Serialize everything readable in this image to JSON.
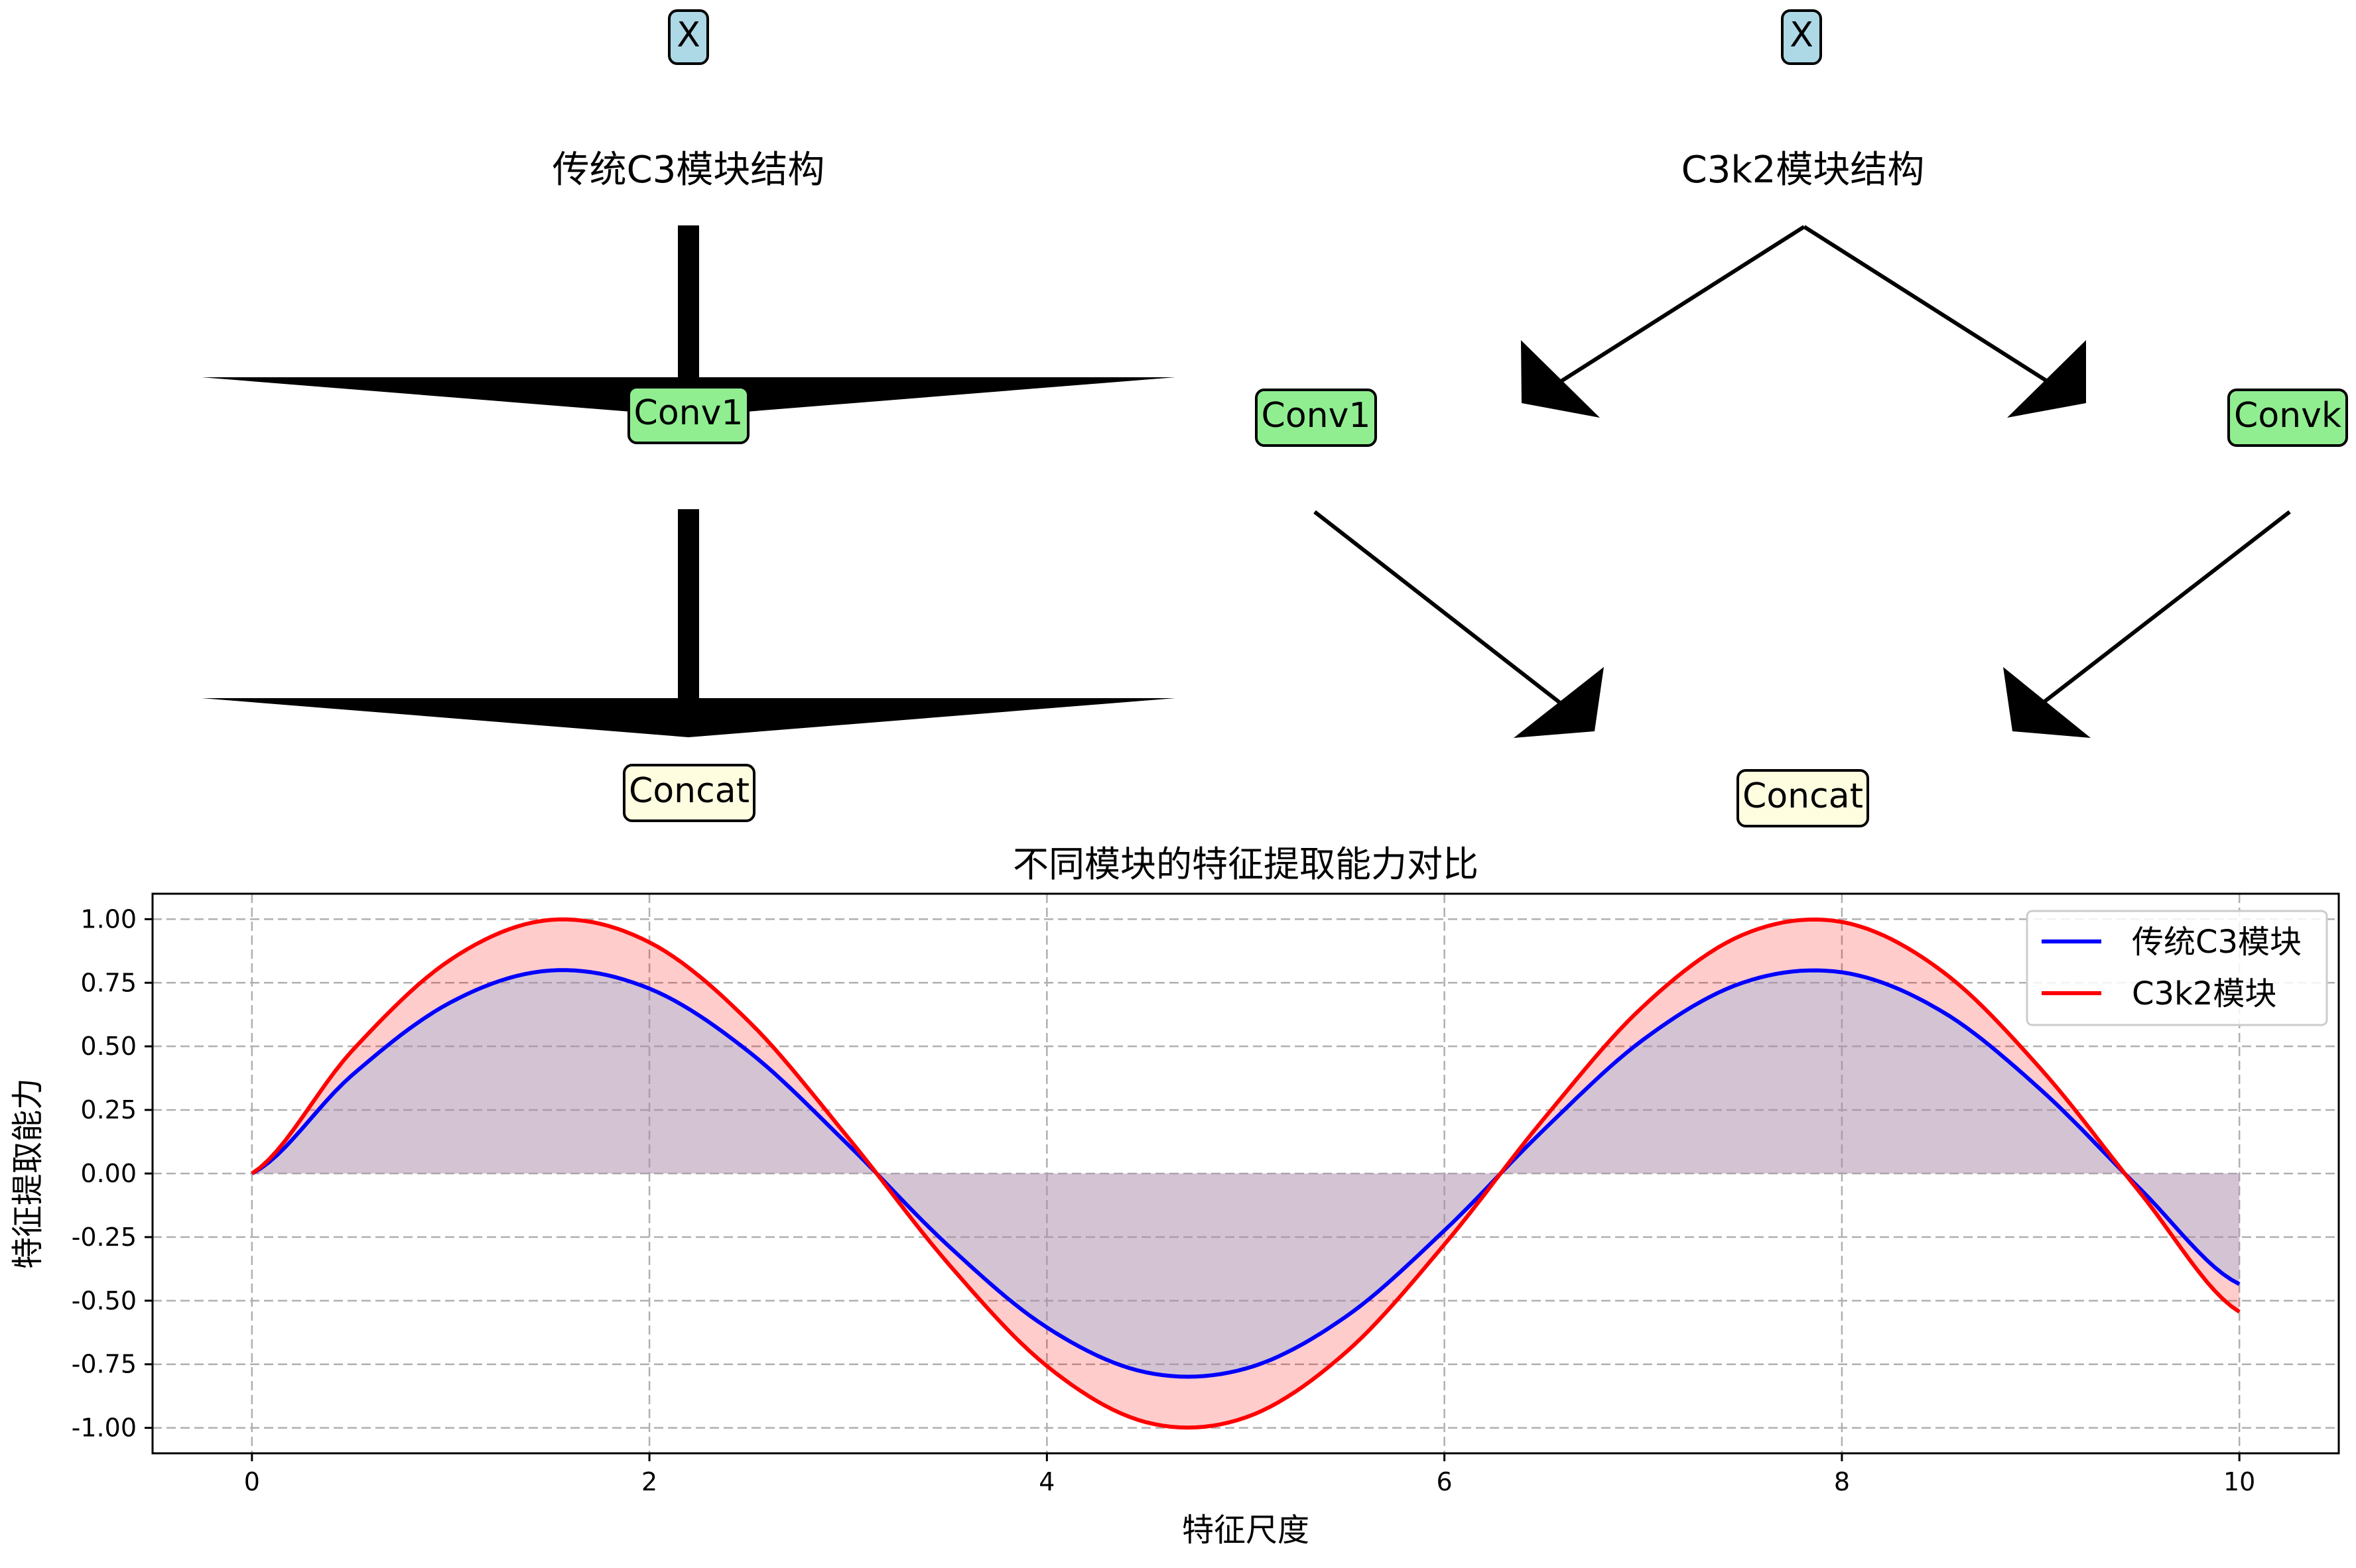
{
  "diagram": {
    "left": {
      "title": "传统C3模块结构",
      "input": "X",
      "conv": "Conv1",
      "concat": "Concat"
    },
    "right": {
      "title": "C3k2模块结构",
      "input": "X",
      "conv_left": "Conv1",
      "conv_right": "Convk",
      "concat": "Concat"
    },
    "colors": {
      "input_fill": "#add8e6",
      "conv_fill": "#90ee90",
      "concat_fill": "#fffde0"
    }
  },
  "chart_data": {
    "type": "line",
    "title": "不同模块的特征提取能力对比",
    "xlabel": "特征尺度",
    "ylabel": "特征提取能力",
    "xlim": [
      -0.5,
      10.5
    ],
    "ylim": [
      -1.1,
      1.1
    ],
    "xticks": [
      0,
      2,
      4,
      6,
      8,
      10
    ],
    "yticks": [
      1.0,
      0.75,
      0.5,
      0.25,
      0.0,
      -0.25,
      -0.5,
      -0.75,
      -1.0
    ],
    "xtick_labels": [
      "0",
      "2",
      "4",
      "6",
      "8",
      "10"
    ],
    "ytick_labels": [
      "1.00",
      "0.75",
      "0.50",
      "0.25",
      "0.00",
      "-0.25",
      "-0.50",
      "-0.75",
      "-1.00"
    ],
    "grid": true,
    "legend_position": "top-right",
    "x": [
      0,
      0.5,
      1,
      1.5,
      2,
      2.5,
      3,
      3.5,
      4,
      4.5,
      5,
      5.5,
      6,
      6.5,
      7,
      7.5,
      8,
      8.5,
      9,
      9.5,
      10
    ],
    "series": [
      {
        "name": "传统C3模块",
        "color": "#0000ff",
        "values": [
          0,
          0.384,
          0.673,
          0.798,
          0.727,
          0.479,
          0.113,
          -0.281,
          -0.605,
          -0.782,
          -0.767,
          -0.565,
          -0.224,
          0.172,
          0.526,
          0.75,
          0.791,
          0.639,
          0.33,
          -0.06,
          -0.435
        ]
      },
      {
        "name": "C3k2模块",
        "color": "#ff0000",
        "values": [
          0,
          0.479,
          0.841,
          0.997,
          0.909,
          0.598,
          0.141,
          -0.351,
          -0.757,
          -0.978,
          -0.959,
          -0.706,
          -0.279,
          0.215,
          0.657,
          0.938,
          0.989,
          0.798,
          0.412,
          -0.075,
          -0.544
        ]
      }
    ],
    "fills": [
      {
        "between": "C3k2模块 and 传统C3模块",
        "color": "#ff0000",
        "alpha": 0.2
      },
      {
        "between": "传统C3模块 and 0",
        "color": "#8fa8c8",
        "alpha": 0.3
      }
    ]
  }
}
